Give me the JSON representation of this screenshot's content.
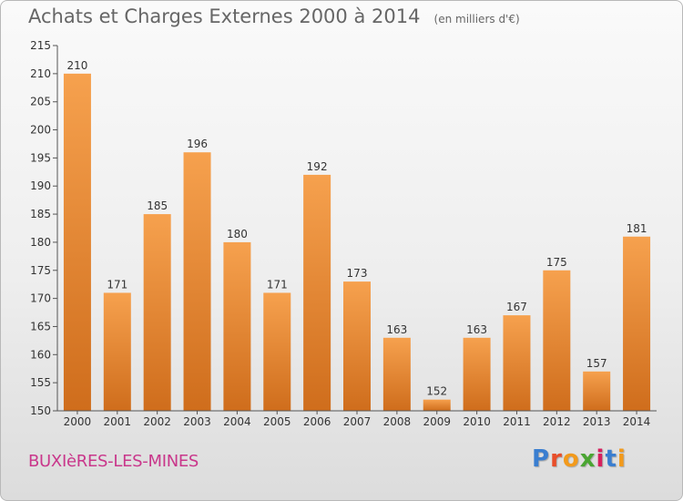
{
  "title": "Achats et Charges Externes 2000 à 2014",
  "unit_note": "(en milliers d'€)",
  "place": "BUXIèRES-LES-MINES",
  "logo": {
    "letters": [
      "P",
      "r",
      "o",
      "x",
      "i",
      "t",
      "i"
    ],
    "colors": [
      "#3a7ed0",
      "#e84e2a",
      "#f29a1c",
      "#4aa532",
      "#d6205e",
      "#3a7ed0",
      "#f29a1c"
    ]
  },
  "colors": {
    "bar_top": "#f6a14e",
    "bar_bottom": "#cf6d1c",
    "axis_text": "#333333",
    "place_text": "#c9378b"
  },
  "chart_data": {
    "type": "bar",
    "categories": [
      "2000",
      "2001",
      "2002",
      "2003",
      "2004",
      "2005",
      "2006",
      "2007",
      "2008",
      "2009",
      "2010",
      "2011",
      "2012",
      "2013",
      "2014"
    ],
    "values": [
      210,
      171,
      185,
      196,
      180,
      171,
      192,
      173,
      163,
      152,
      163,
      167,
      175,
      157,
      181
    ],
    "ylim": [
      150,
      215
    ],
    "yticks": [
      150,
      155,
      160,
      165,
      170,
      175,
      180,
      185,
      190,
      195,
      200,
      205,
      210,
      215
    ],
    "grid": false
  }
}
